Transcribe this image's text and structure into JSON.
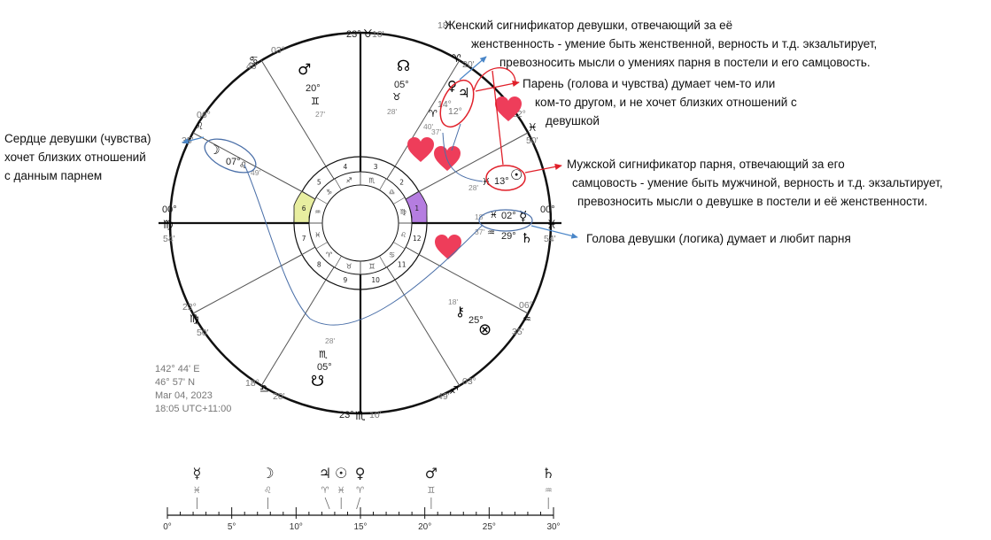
{
  "annotations": {
    "heart": [
      "Сердце девушки (чувства)",
      "хочет близких отношений",
      "с данным парнем"
    ],
    "female": [
      "Женский сигнификатор девушки, отвечающий за её",
      "женственность - умение  быть женственной, верность и т.д. экзальтирует,",
      "превозносить мысли о умениях парня в постели и его самцовость."
    ],
    "guy": [
      "Парень (голова и чувства) думает чем-то или",
      "ком-то другом, и не хочет близких отношений с",
      "девушкой"
    ],
    "male": [
      "Мужской сигнификатор парня, отвечающий за его",
      "самцовость - умение  быть мужчиной, верность и т.д. экзальтирует,",
      "превозносить мысли о девушке в постели и её женственности."
    ],
    "head": [
      "Голова девушки (логика) думает и любит парня"
    ]
  },
  "chart_meta": [
    "142° 44' E",
    "46° 57' N",
    "Mar 04, 2023",
    "18:05 UTC+11:00"
  ],
  "cusps": {
    "top": {
      "deg": "23°",
      "sign": "taurus-glyph",
      "glyph": "♉",
      "min": "10'"
    },
    "bottom": {
      "deg": "23°",
      "sign": "scorpio-glyph",
      "glyph": "♏",
      "min": "10'"
    },
    "left": {
      "deg": "00°",
      "sign": "virgo-glyph",
      "glyph": "♍",
      "min": "54'"
    },
    "right": {
      "deg": "00°",
      "sign": "pisces-glyph",
      "glyph": "♓",
      "min": "54'"
    },
    "upper_left_1": {
      "deg": "03°",
      "glyph": "♋",
      "min": "49'"
    },
    "upper_left_2": {
      "deg": "06°",
      "glyph": "♌",
      "min": "35'"
    },
    "lower_left_1": {
      "deg": "22°",
      "glyph": "♍",
      "min": "50'"
    },
    "lower_left_2": {
      "deg": "18°",
      "glyph": "♎",
      "min": "20'"
    },
    "upper_right_1": {
      "deg": "18°",
      "glyph": "♈",
      "min": "20'"
    },
    "upper_right_2": {
      "deg": "22°",
      "glyph": "♓",
      "min": "50'"
    },
    "lower_right_1": {
      "deg": "06°",
      "glyph": "♒",
      "min": "35'"
    },
    "lower_right_2": {
      "deg": "03°",
      "glyph": "♐",
      "min": "49'"
    }
  },
  "planets": {
    "mars": {
      "glyph": "♂",
      "deg": "20°",
      "sign": "♊",
      "min": "27'"
    },
    "north_node": {
      "glyph": "☊",
      "deg": "05°",
      "sign": "♉",
      "min": "28'"
    },
    "venus_jupiter": {
      "venus": "♀",
      "jupiter": "♃",
      "deg1": "14°",
      "deg2": "12°",
      "sign": "♈",
      "min1": "40'",
      "min2": "37'"
    },
    "sun": {
      "glyph": "☉",
      "deg": "13°",
      "sign": "♓",
      "min": "28'"
    },
    "mercury": {
      "glyph": "☿",
      "deg": "02°",
      "sign": "♓",
      "min": "18'"
    },
    "saturn": {
      "glyph": "♄",
      "deg": "29°",
      "sign": "♒",
      "min": "37'"
    },
    "moon": {
      "glyph": "☽",
      "deg": "07°",
      "sign": "♌",
      "min": "49'"
    },
    "chiron": {
      "glyph": "⚷",
      "deg": "25°",
      "min": "18'"
    },
    "fortune": {
      "glyph": "⊗"
    },
    "south_node": {
      "glyph": "☋",
      "deg": "05°",
      "sign": "♏",
      "min": "28'"
    }
  },
  "houses": [
    "1",
    "2",
    "3",
    "4",
    "5",
    "6",
    "7",
    "8",
    "9",
    "10",
    "11",
    "12"
  ],
  "inner_signs": [
    "♓",
    "♈",
    "♉",
    "♊",
    "♋",
    "♌",
    "♍",
    "♎",
    "♏",
    "♐",
    "♑",
    "♒"
  ],
  "strip": {
    "ticks": [
      "0°",
      "5°",
      "10°",
      "15°",
      "20°",
      "25°",
      "30°"
    ],
    "planets": [
      {
        "glyph": "☿",
        "sign": "♓",
        "value": 2.3
      },
      {
        "glyph": "☽",
        "sign": "♌",
        "value": 7.8
      },
      {
        "glyph": "♃",
        "sign": "♈",
        "value": 12.6
      },
      {
        "glyph": "☉",
        "sign": "♓",
        "value": 13.5
      },
      {
        "glyph": "♀",
        "sign": "♈",
        "value": 14.7
      },
      {
        "glyph": "♂",
        "sign": "♊",
        "value": 20.5
      },
      {
        "glyph": "♄",
        "sign": "♒",
        "value": 29.6
      }
    ]
  }
}
